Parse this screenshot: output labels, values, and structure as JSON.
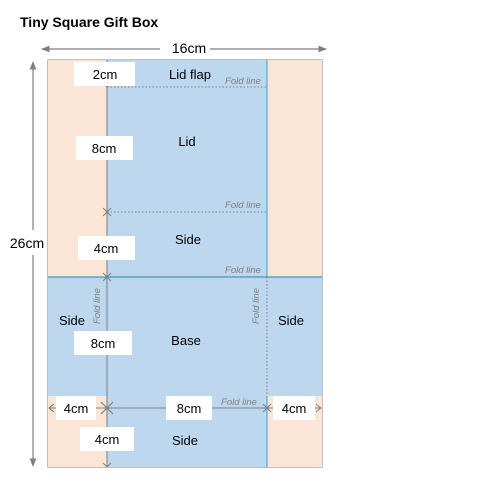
{
  "title": "Tiny Square Gift Box",
  "dimensions": {
    "total_width": "16cm",
    "total_height": "26cm",
    "lid_flap_height": "2cm",
    "lid_height": "8cm",
    "side_top_height": "4cm",
    "base_height": "8cm",
    "side_bottom_height": "4cm",
    "left_side_width": "4cm",
    "base_width": "8cm",
    "right_side_width": "4cm"
  },
  "panels": {
    "lid_flap": "Lid flap",
    "lid": "Lid",
    "side_top": "Side",
    "base": "Base",
    "side_left": "Side",
    "side_right": "Side",
    "side_bottom": "Side"
  },
  "fold_label": "Fold line",
  "colors": {
    "blue_panel": "#bdd7ee",
    "peach_panel": "#fbe5d6",
    "blue_line": "#2e9fd6",
    "arrow_gray": "#808080",
    "fold_text": "#7f7f7f"
  }
}
